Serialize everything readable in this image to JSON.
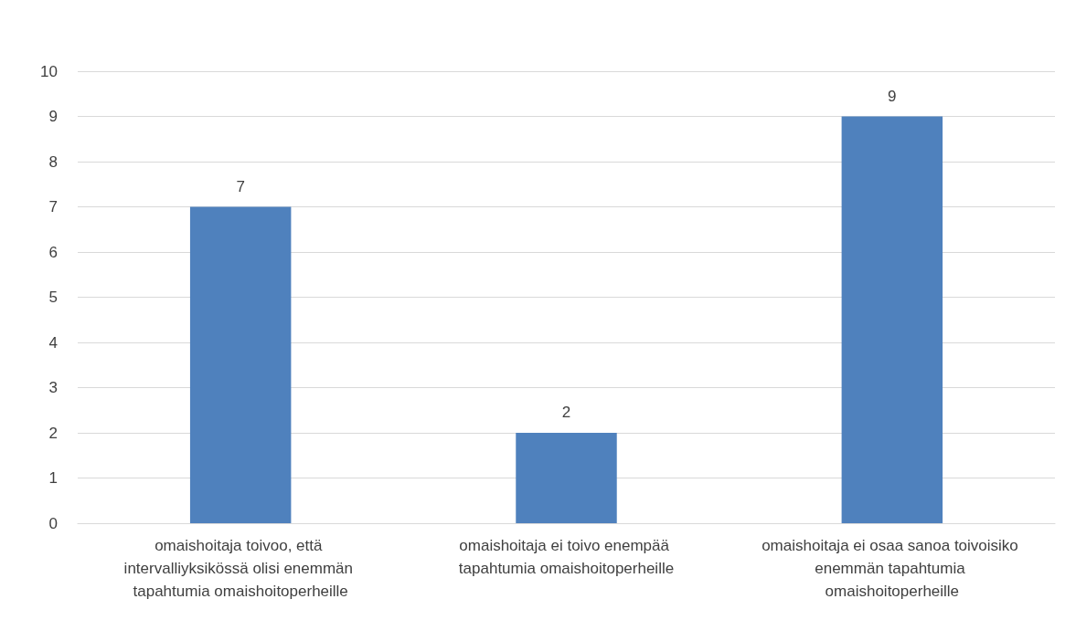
{
  "chart_data": {
    "type": "bar",
    "categories": [
      "omaishoitaja toivoo, että intervalliyksikössä olisi enemmän tapahtumia omaishoitoperheille",
      "omaishoitaja ei toivo enempää tapahtumia omaishoitoperheille",
      "omaishoitaja ei osaa sanoa toivoisiko enemmän tapahtumia omaishoitoperheille"
    ],
    "values": [
      7,
      2,
      9
    ],
    "color": "#4f81bd",
    "ylim": [
      0,
      10
    ],
    "yticks": [
      0,
      1,
      2,
      3,
      4,
      5,
      6,
      7,
      8,
      9,
      10
    ],
    "grid": "y",
    "data_labels": true
  }
}
